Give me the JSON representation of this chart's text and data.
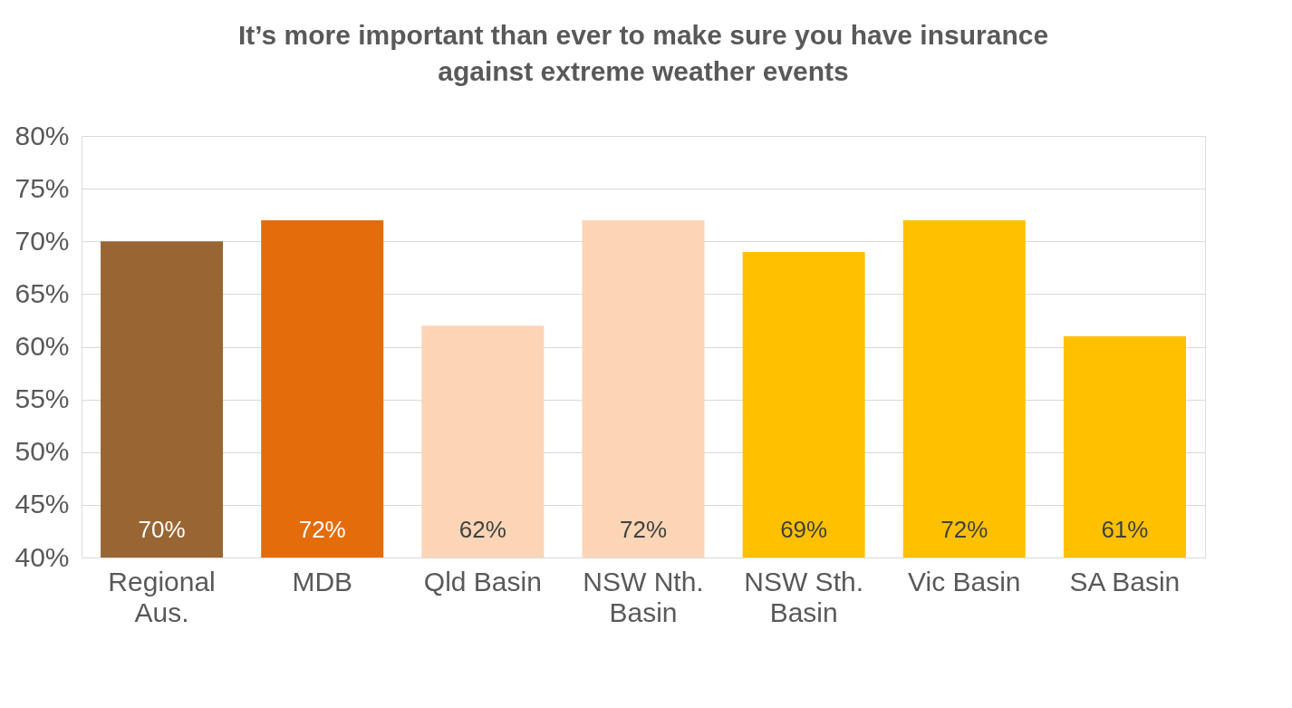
{
  "chart_data": {
    "type": "bar",
    "title": "It’s more important than ever to make sure you have insurance against extreme weather events",
    "categories": [
      "Regional Aus.",
      "MDB",
      "Qld Basin",
      "NSW Nth. Basin",
      "NSW Sth. Basin",
      "Vic Basin",
      "SA Basin"
    ],
    "values": [
      70,
      72,
      62,
      72,
      69,
      72,
      61
    ],
    "colors": [
      "#996633",
      "#e46c0a",
      "#fbd5b5",
      "#fbd5b5",
      "#ffc000",
      "#ffc000",
      "#ffc000"
    ],
    "ylim": [
      40,
      80
    ],
    "yticks": [
      {
        "value": 40,
        "label": "40%"
      },
      {
        "value": 45,
        "label": "45%"
      },
      {
        "value": 50,
        "label": "50%"
      },
      {
        "value": 55,
        "label": "55%"
      },
      {
        "value": 60,
        "label": "60%"
      },
      {
        "value": 65,
        "label": "65%"
      },
      {
        "value": 70,
        "label": "70%"
      },
      {
        "value": 75,
        "label": "75%"
      },
      {
        "value": 80,
        "label": "80%"
      }
    ],
    "value_labels": [
      "70%",
      "72%",
      "62%",
      "72%",
      "69%",
      "72%",
      "61%"
    ],
    "grid": "y"
  }
}
